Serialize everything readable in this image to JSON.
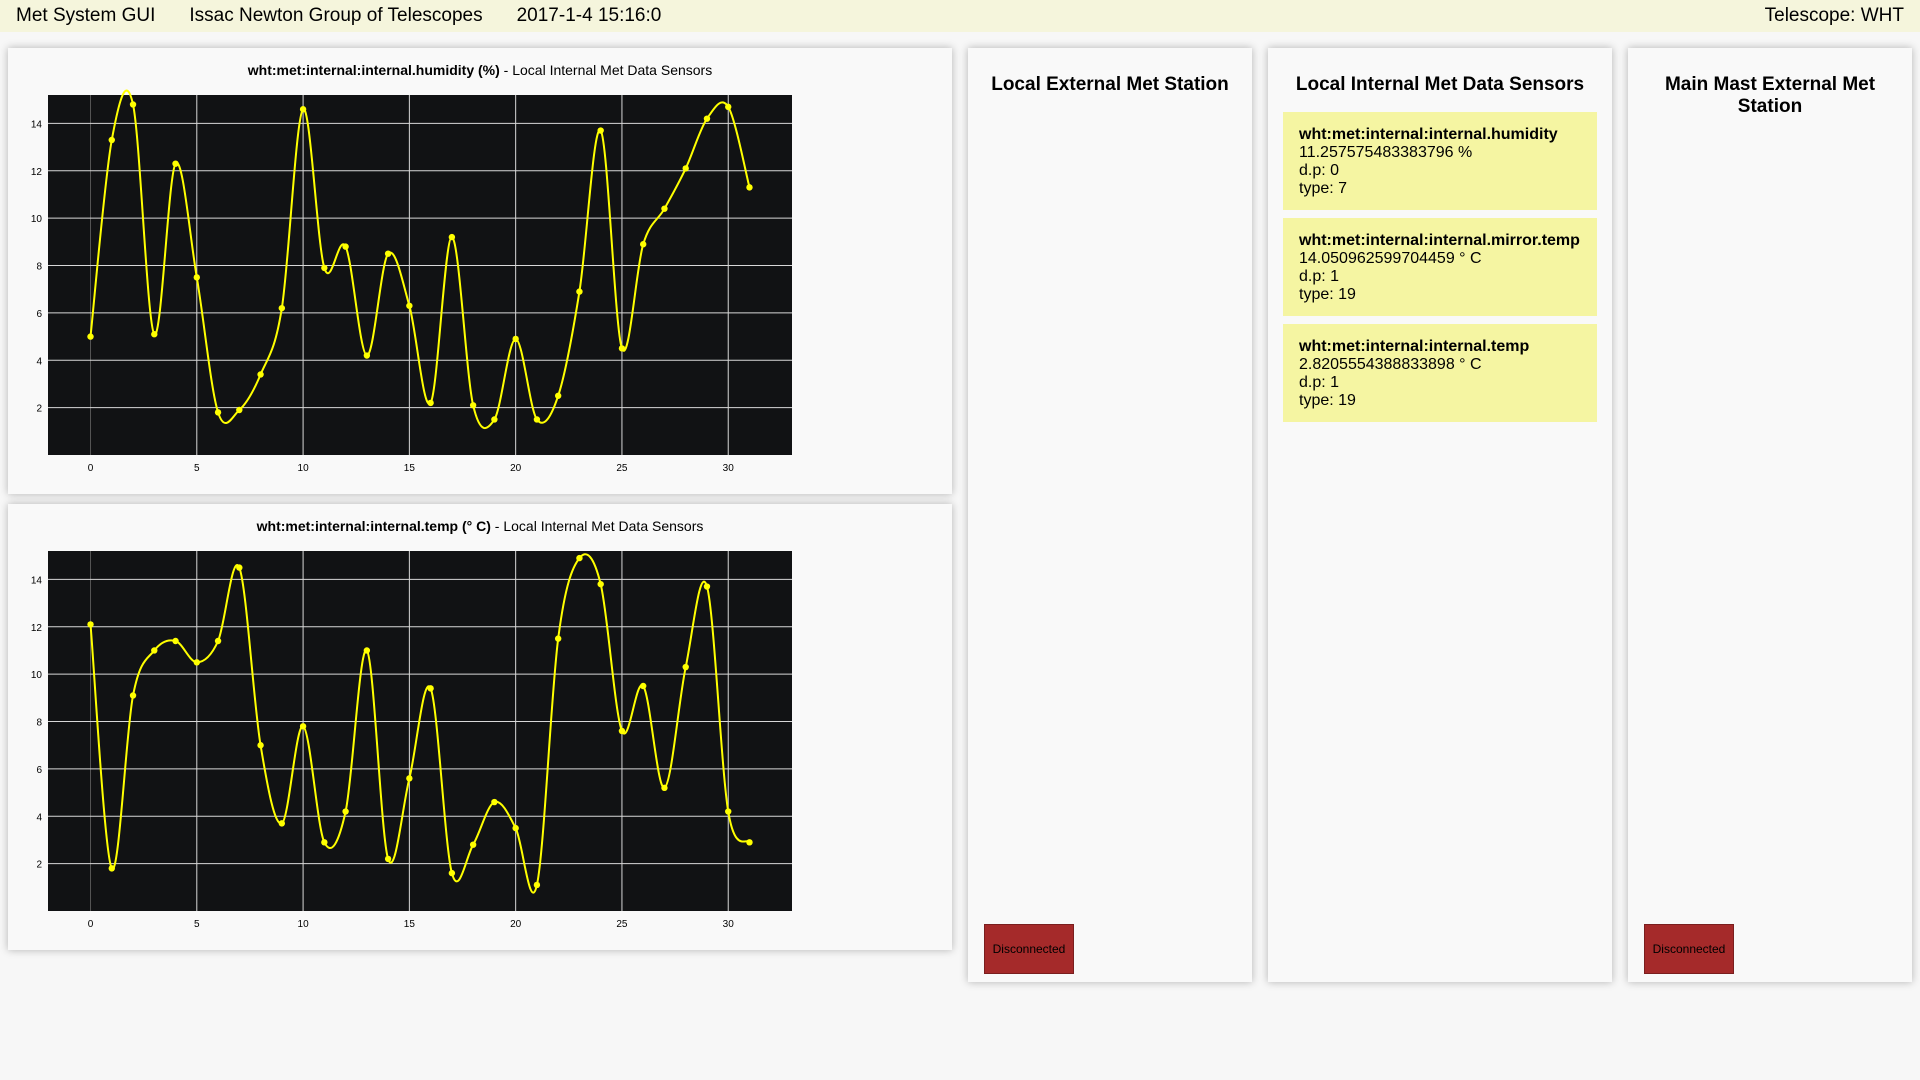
{
  "header": {
    "app_title": "Met System GUI",
    "organization": "Issac Newton Group of Telescopes",
    "datetime": "2017-1-4 15:16:0",
    "telescope": "Telescope: WHT"
  },
  "charts": [
    {
      "title_bold": "wht:met:internal:internal.humidity (%)",
      "title_rest": " - Local Internal Met Data Sensors"
    },
    {
      "title_bold": "wht:met:internal:internal.temp (° C)",
      "title_rest": " - Local Internal Met Data Sensors"
    }
  ],
  "chart_data": [
    {
      "type": "line",
      "title": "wht:met:internal:internal.humidity (%) - Local Internal Met Data Sensors",
      "xlabel": "",
      "ylabel": "",
      "xlim": [
        -2,
        33
      ],
      "ylim": [
        0,
        15.2
      ],
      "xticks": [
        0,
        5,
        10,
        15,
        20,
        25,
        30
      ],
      "yticks": [
        2,
        4,
        6,
        8,
        10,
        12,
        14
      ],
      "grid": true,
      "line_color": "#ffff00",
      "background_color": "#111214",
      "series": [
        {
          "x": [
            0,
            1,
            2,
            3,
            4,
            5,
            6,
            7,
            8,
            9,
            10,
            11,
            12,
            13,
            14,
            15,
            16,
            17,
            18,
            19,
            20,
            21,
            22,
            23,
            24,
            25,
            26,
            27,
            28,
            29,
            30,
            31
          ],
          "values": [
            5.0,
            13.3,
            14.8,
            5.1,
            12.3,
            7.5,
            1.8,
            1.9,
            3.4,
            6.2,
            14.6,
            7.9,
            8.8,
            4.2,
            8.5,
            6.3,
            2.2,
            9.2,
            2.1,
            1.5,
            4.9,
            1.5,
            2.5,
            6.9,
            13.7,
            4.5,
            8.9,
            10.4,
            12.1,
            14.2,
            14.7,
            11.3
          ]
        }
      ]
    },
    {
      "type": "line",
      "title": "wht:met:internal:internal.temp (° C) - Local Internal Met Data Sensors",
      "xlabel": "",
      "ylabel": "",
      "xlim": [
        -2,
        33
      ],
      "ylim": [
        0,
        15.2
      ],
      "xticks": [
        0,
        5,
        10,
        15,
        20,
        25,
        30
      ],
      "yticks": [
        2,
        4,
        6,
        8,
        10,
        12,
        14
      ],
      "grid": true,
      "line_color": "#ffff00",
      "background_color": "#111214",
      "series": [
        {
          "x": [
            0,
            1,
            2,
            3,
            4,
            5,
            6,
            7,
            8,
            9,
            10,
            11,
            12,
            13,
            14,
            15,
            16,
            17,
            18,
            19,
            20,
            21,
            22,
            23,
            24,
            25,
            26,
            27,
            28,
            29,
            30,
            31
          ],
          "values": [
            12.1,
            1.8,
            9.1,
            11.0,
            11.4,
            10.5,
            11.4,
            14.5,
            7.0,
            3.7,
            7.8,
            2.9,
            4.2,
            11.0,
            2.2,
            5.6,
            9.4,
            1.6,
            2.8,
            4.6,
            3.5,
            1.1,
            11.5,
            14.9,
            13.8,
            7.6,
            9.5,
            5.2,
            10.3,
            13.7,
            4.2,
            2.9
          ]
        }
      ]
    }
  ],
  "panels": {
    "external": {
      "title": "Local External Met Station",
      "status": "Disconnected"
    },
    "internal": {
      "title": "Local Internal Met Data Sensors",
      "sensors": [
        {
          "name": "wht:met:internal:internal.humidity",
          "value": "11.257575483383796 %",
          "dp": "d.p: 0",
          "type": "type: 7"
        },
        {
          "name": "wht:met:internal:internal.mirror.temp",
          "value": "14.050962599704459 ° C",
          "dp": "d.p: 1",
          "type": "type: 19"
        },
        {
          "name": "wht:met:internal:internal.temp",
          "value": "2.8205554388833898 ° C",
          "dp": "d.p: 1",
          "type": "type: 19"
        }
      ]
    },
    "mainmast": {
      "title": "Main Mast External Met Station",
      "status": "Disconnected"
    }
  },
  "colors": {
    "header_bg": "#f5f5dc",
    "sensor_bg": "#f5f5a2",
    "status_disconnected": "#a52a2a"
  }
}
